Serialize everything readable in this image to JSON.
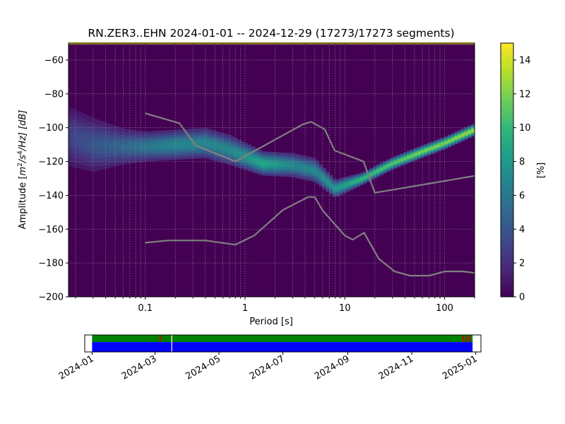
{
  "chart_data": [
    {
      "type": "heatmap",
      "title": "RN.ZER3..EHN   2024-01-01 -- 2024-12-29  (17273/17273 segments)",
      "xlabel": "Period [s]",
      "ylabel_prefix": "Amplitude [",
      "ylabel_unit_base": "m",
      "ylabel_unit_exp1": "2",
      "ylabel_unit_mid": "/s",
      "ylabel_unit_exp2": "4",
      "ylabel_unit_tail": "/Hz] [dB]",
      "x_scale": "log",
      "xlim": [
        0.017,
        200
      ],
      "ylim": [
        -200,
        -50
      ],
      "x_ticks": [
        {
          "value": 0.1,
          "label": "0.1"
        },
        {
          "value": 1,
          "label": "1"
        },
        {
          "value": 10,
          "label": "10"
        },
        {
          "value": 100,
          "label": "100"
        }
      ],
      "y_ticks": [
        {
          "value": -60,
          "label": "−60"
        },
        {
          "value": -80,
          "label": "−80"
        },
        {
          "value": -100,
          "label": "−100"
        },
        {
          "value": -120,
          "label": "−120"
        },
        {
          "value": -140,
          "label": "−140"
        },
        {
          "value": -160,
          "label": "−160"
        },
        {
          "value": -180,
          "label": "−180"
        },
        {
          "value": -200,
          "label": "−200"
        }
      ],
      "grid": true,
      "background_color": "#440154",
      "density_ridge": [
        {
          "period": 0.017,
          "db": -105,
          "spread": 10,
          "percent": 3
        },
        {
          "period": 0.03,
          "db": -110,
          "spread": 9,
          "percent": 4
        },
        {
          "period": 0.06,
          "db": -111,
          "spread": 6,
          "percent": 5
        },
        {
          "period": 0.1,
          "db": -111,
          "spread": 5,
          "percent": 6
        },
        {
          "period": 0.2,
          "db": -110,
          "spread": 5,
          "percent": 7
        },
        {
          "period": 0.4,
          "db": -109,
          "spread": 5,
          "percent": 7
        },
        {
          "period": 0.7,
          "db": -113,
          "spread": 5,
          "percent": 7
        },
        {
          "period": 1.5,
          "db": -121,
          "spread": 4,
          "percent": 9
        },
        {
          "period": 3,
          "db": -122,
          "spread": 4,
          "percent": 7
        },
        {
          "period": 5,
          "db": -125,
          "spread": 4,
          "percent": 7
        },
        {
          "period": 8,
          "db": -136,
          "spread": 3,
          "percent": 8
        },
        {
          "period": 15,
          "db": -130,
          "spread": 2,
          "percent": 10
        },
        {
          "period": 30,
          "db": -121,
          "spread": 2,
          "percent": 11
        },
        {
          "period": 60,
          "db": -114,
          "spread": 2,
          "percent": 12
        },
        {
          "period": 100,
          "db": -109,
          "spread": 2,
          "percent": 12
        },
        {
          "period": 200,
          "db": -101,
          "spread": 2,
          "percent": 13
        }
      ],
      "series": [
        {
          "kind": "upper_noise_model",
          "color": "#808080",
          "points": [
            [
              0.1,
              -91.5
            ],
            [
              0.22,
              -97.4
            ],
            [
              0.32,
              -110.5
            ],
            [
              0.8,
              -120
            ],
            [
              3.8,
              -98
            ],
            [
              4.6,
              -96.5
            ],
            [
              6.3,
              -101
            ],
            [
              7.9,
              -113.5
            ],
            [
              15.4,
              -120
            ],
            [
              20,
              -138.5
            ],
            [
              354.8,
              -126
            ]
          ]
        },
        {
          "kind": "lower_noise_model",
          "color": "#808080",
          "points": [
            [
              0.1,
              -168
            ],
            [
              0.17,
              -166.7
            ],
            [
              0.4,
              -166.7
            ],
            [
              0.8,
              -169.2
            ],
            [
              1.24,
              -163.7
            ],
            [
              2.4,
              -148.6
            ],
            [
              4.3,
              -141
            ],
            [
              5,
              -141
            ],
            [
              6,
              -149
            ],
            [
              10,
              -163.8
            ],
            [
              12,
              -166.2
            ],
            [
              15.6,
              -162.1
            ],
            [
              21.9,
              -177.5
            ],
            [
              31.6,
              -185
            ],
            [
              45,
              -187.5
            ],
            [
              70,
              -187.5
            ],
            [
              101,
              -185
            ],
            [
              154,
              -185
            ],
            [
              328,
              -187.5
            ]
          ]
        }
      ]
    },
    {
      "type": "colorbar",
      "label": "[%]",
      "range": [
        0,
        15
      ],
      "ticks": [
        {
          "value": 0,
          "label": "0"
        },
        {
          "value": 2,
          "label": "2"
        },
        {
          "value": 4,
          "label": "4"
        },
        {
          "value": 6,
          "label": "6"
        },
        {
          "value": 8,
          "label": "8"
        },
        {
          "value": 10,
          "label": "10"
        },
        {
          "value": 12,
          "label": "12"
        },
        {
          "value": 14,
          "label": "14"
        }
      ],
      "colormap": [
        "#440154",
        "#482878",
        "#3e4989",
        "#31688e",
        "#26828e",
        "#1f9e89",
        "#35b779",
        "#6ece58",
        "#b5de2b",
        "#fde725"
      ]
    },
    {
      "type": "timeline",
      "x_ticks": [
        {
          "value": "2024-01",
          "label": "2024-01"
        },
        {
          "value": "2024-03",
          "label": "2024-03"
        },
        {
          "value": "2024-05",
          "label": "2024-05"
        },
        {
          "value": "2024-07",
          "label": "2024-07"
        },
        {
          "value": "2024-09",
          "label": "2024-09"
        },
        {
          "value": "2024-11",
          "label": "2024-11"
        },
        {
          "value": "2025-01",
          "label": "2025-01"
        }
      ],
      "xlim": [
        "2023-12-25",
        "2025-01-06"
      ],
      "bands": [
        {
          "name": "green",
          "color": "#008000",
          "start": "2024-01-01",
          "end": "2024-12-29"
        },
        {
          "name": "blue",
          "color": "#0000ff",
          "start": "2024-01-01",
          "end": "2024-12-29"
        }
      ],
      "red_marks": [
        "2024-03-06",
        "2024-12-20",
        "2024-12-23",
        "2024-12-26"
      ],
      "gap_marks": [
        "2024-03-17"
      ]
    }
  ]
}
